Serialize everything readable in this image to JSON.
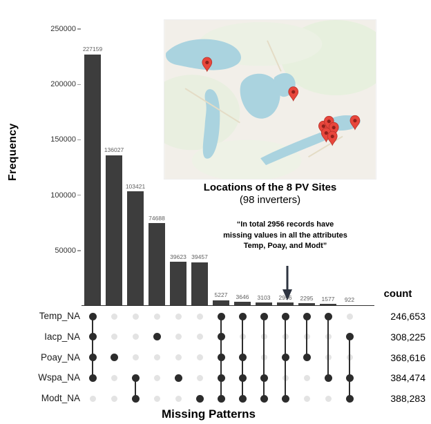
{
  "figure": {
    "ylabel": "Frequency",
    "xlabel": "Missing Patterns",
    "count_header": "count"
  },
  "map": {
    "caption_line1": "Locations of the 8 PV Sites",
    "caption_line2": "(98 inverters)"
  },
  "annotation": {
    "line1": "“In total 2956 records have",
    "line2": "missing values in all the attributes",
    "line3": "Temp, Poay, and Modt”"
  },
  "chart_data": {
    "type": "bar",
    "subtype": "upset-missing-patterns",
    "title": "",
    "xlabel": "Missing Patterns",
    "ylabel": "Frequency",
    "ylim": [
      0,
      250000
    ],
    "yticks": [
      50000,
      100000,
      150000,
      200000,
      250000
    ],
    "grid": false,
    "bar_color": "#3d3d3d",
    "bar_values": [
      227159,
      136027,
      103421,
      74688,
      39623,
      39457,
      5227,
      3646,
      3103,
      2956,
      2295,
      1577,
      922
    ],
    "rows_order": [
      "Temp_NA",
      "Iacp_NA",
      "Poay_NA",
      "Wspa_NA",
      "Modt_NA"
    ],
    "rows": [
      {
        "label": "Temp_NA",
        "count": "246,653"
      },
      {
        "label": "Iacp_NA",
        "count": "308,225"
      },
      {
        "label": "Poay_NA",
        "count": "368,616"
      },
      {
        "label": "Wspa_NA",
        "count": "384,474"
      },
      {
        "label": "Modt_NA",
        "count": "388,283"
      }
    ],
    "patterns": [
      [
        1,
        1,
        1,
        1,
        0
      ],
      [
        0,
        0,
        1,
        0,
        0
      ],
      [
        0,
        0,
        0,
        1,
        1
      ],
      [
        0,
        1,
        0,
        0,
        0
      ],
      [
        0,
        0,
        0,
        1,
        0
      ],
      [
        0,
        0,
        0,
        0,
        1
      ],
      [
        1,
        1,
        1,
        1,
        1
      ],
      [
        1,
        0,
        1,
        1,
        1
      ],
      [
        1,
        0,
        0,
        1,
        1
      ],
      [
        1,
        0,
        1,
        0,
        1
      ],
      [
        1,
        0,
        1,
        0,
        0
      ],
      [
        1,
        0,
        0,
        1,
        0
      ],
      [
        0,
        1,
        0,
        1,
        1
      ]
    ],
    "annotation_target_value": 2956
  }
}
